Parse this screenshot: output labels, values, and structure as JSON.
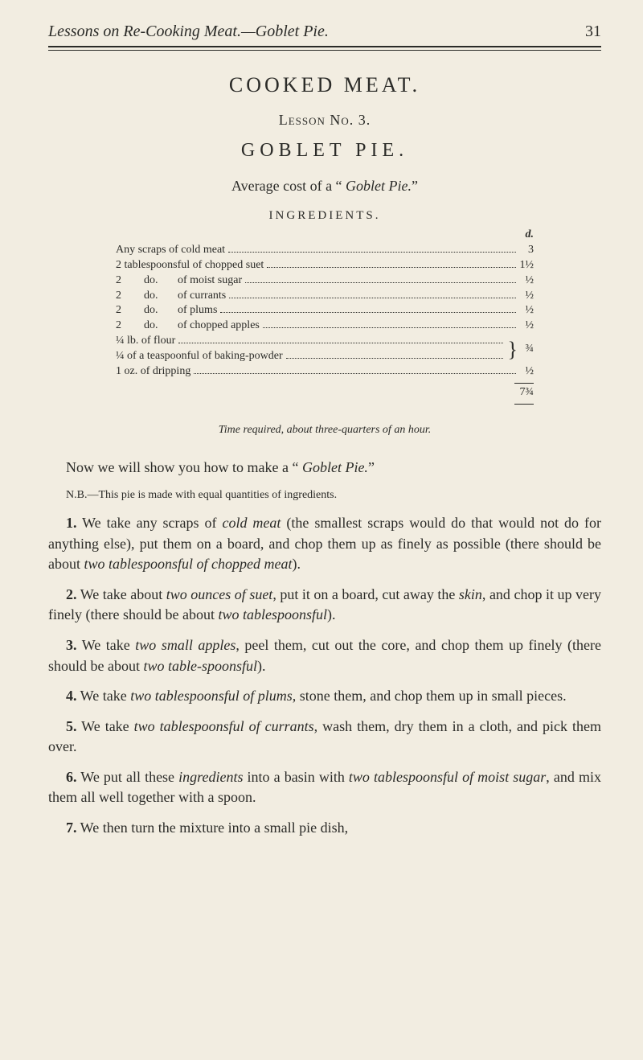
{
  "running_head": {
    "title": "Lessons on Re-Cooking Meat.—Goblet Pie.",
    "page_no": "31"
  },
  "section_title": "COOKED MEAT.",
  "lesson_no": "Lesson No. 3.",
  "recipe_title": "GOBLET PIE.",
  "average_cost_prefix": "Average cost of a “ ",
  "average_cost_name": "Goblet Pie.",
  "average_cost_suffix": "”",
  "ingredients_heading": "INGREDIENTS.",
  "cost_header": "d.",
  "ingredients": [
    {
      "label": "Any scraps of cold meat",
      "cost": "3"
    },
    {
      "label": "2 tablespoonsful of chopped suet",
      "cost": "1½"
    },
    {
      "label": "2        do.       of moist sugar",
      "cost": "½"
    },
    {
      "label": "2        do.       of currants",
      "cost": "½"
    },
    {
      "label": "2        do.       of plums",
      "cost": "½"
    },
    {
      "label": "2        do.       of chopped apples",
      "cost": "½"
    }
  ],
  "brace_group": {
    "line1": "¼ lb. of flour",
    "line2": "¼ of a teaspoonful of baking-powder",
    "cost": "¾"
  },
  "dripping": {
    "label": "1 oz. of dripping",
    "cost": "½"
  },
  "total": "7¾",
  "time_required": "Time required, about three-quarters of an hour.",
  "intro_line_prefix": "Now we will show you how to make a “ ",
  "intro_line_name": "Goblet Pie.",
  "intro_line_suffix": "”",
  "nb": "N.B.—This pie is made with equal quantities of ingredients.",
  "steps": [
    {
      "n": "1.",
      "runs": [
        {
          "t": " We take any scraps of "
        },
        {
          "t": "cold meat",
          "i": true
        },
        {
          "t": " (the smallest scraps would do that would not do for anything else), put them on a board, and chop them up as finely as possible (there should be about "
        },
        {
          "t": "two tablespoonsful of chopped meat",
          "i": true
        },
        {
          "t": ")."
        }
      ]
    },
    {
      "n": "2.",
      "runs": [
        {
          "t": " We take about "
        },
        {
          "t": "two ounces of suet",
          "i": true
        },
        {
          "t": ", put it on a board, cut away the "
        },
        {
          "t": "skin",
          "i": true
        },
        {
          "t": ", and chop it up very finely (there should be about "
        },
        {
          "t": "two tablespoonsful",
          "i": true
        },
        {
          "t": ")."
        }
      ]
    },
    {
      "n": "3.",
      "runs": [
        {
          "t": " We take "
        },
        {
          "t": "two small apples",
          "i": true
        },
        {
          "t": ", peel them, cut out the core, and chop them up finely (there should be about "
        },
        {
          "t": "two table-spoonsful",
          "i": true
        },
        {
          "t": ")."
        }
      ]
    },
    {
      "n": "4.",
      "runs": [
        {
          "t": " We take "
        },
        {
          "t": "two tablespoonsful of plums",
          "i": true
        },
        {
          "t": ", stone them, and chop them up in small pieces."
        }
      ]
    },
    {
      "n": "5.",
      "runs": [
        {
          "t": " We take "
        },
        {
          "t": "two tablespoonsful of currants",
          "i": true
        },
        {
          "t": ", wash them, dry them in a cloth, and pick them over."
        }
      ]
    },
    {
      "n": "6.",
      "runs": [
        {
          "t": " We put all these "
        },
        {
          "t": "ingredients",
          "i": true
        },
        {
          "t": " into a basin with "
        },
        {
          "t": "two tablespoonsful of moist sugar",
          "i": true
        },
        {
          "t": ", and mix them all well together with a spoon."
        }
      ]
    },
    {
      "n": "7.",
      "runs": [
        {
          "t": " We then turn the mixture into a small pie dish,"
        }
      ]
    }
  ]
}
